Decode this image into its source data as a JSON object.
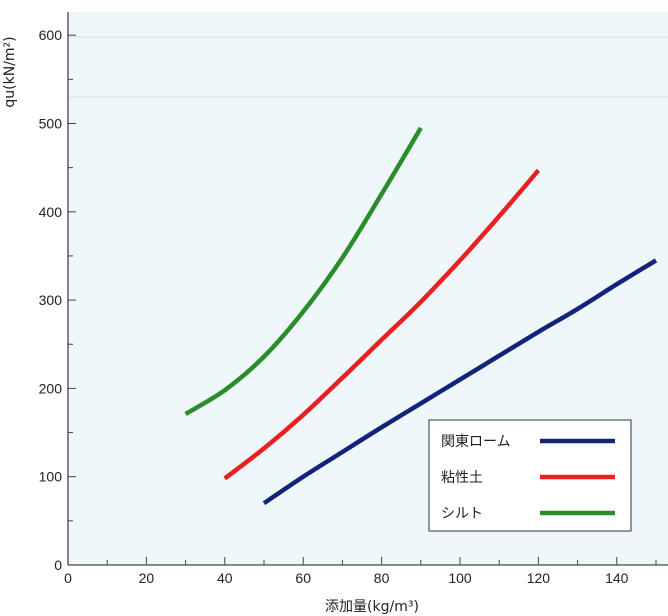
{
  "chart_data": {
    "type": "line",
    "xlabel": "添加量(kg/m³)",
    "ylabel": "qu(kN/m²)",
    "xlim": [
      0,
      150
    ],
    "ylim": [
      0,
      620
    ],
    "x_ticks": [
      0,
      20,
      40,
      60,
      80,
      100,
      120,
      140
    ],
    "y_ticks": [
      0,
      100,
      200,
      300,
      400,
      500,
      600
    ],
    "grid": false,
    "legend_position": "bottom-right",
    "colors": {
      "plot_background": "#eef7f9",
      "axis": "#444444"
    },
    "series": [
      {
        "name": "関東ローム",
        "color": "#14237a",
        "x": [
          50,
          60,
          70,
          80,
          90,
          100,
          110,
          120,
          130,
          140,
          150
        ],
        "y": [
          70,
          100,
          128,
          156,
          183,
          210,
          237,
          264,
          290,
          318,
          345
        ]
      },
      {
        "name": "粘性土",
        "color": "#e82020",
        "x": [
          40,
          50,
          60,
          70,
          80,
          90,
          100,
          110,
          120
        ],
        "y": [
          98,
          132,
          170,
          212,
          255,
          298,
          345,
          395,
          447
        ]
      },
      {
        "name": "シルト",
        "color": "#2a8c2a",
        "x": [
          30,
          40,
          50,
          60,
          70,
          80,
          90
        ],
        "y": [
          171,
          198,
          236,
          287,
          348,
          420,
          495
        ]
      }
    ]
  }
}
